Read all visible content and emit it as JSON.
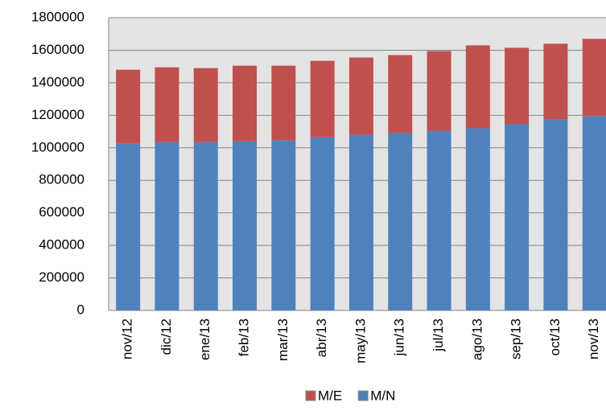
{
  "chart_data": {
    "type": "stacked_bar",
    "categories": [
      "nov/12",
      "dic/12",
      "ene/13",
      "feb/13",
      "mar/13",
      "abr/13",
      "may/13",
      "jun/13",
      "jul/13",
      "ago/13",
      "sep/13",
      "oct/13",
      "nov/13"
    ],
    "series": [
      {
        "name": "M/N",
        "color": "#4f81bd",
        "values": [
          1025000,
          1035000,
          1035000,
          1040000,
          1045000,
          1065000,
          1080000,
          1090000,
          1105000,
          1120000,
          1145000,
          1175000,
          1195000
        ]
      },
      {
        "name": "M/E",
        "color": "#c0504d",
        "values": [
          455000,
          460000,
          455000,
          465000,
          460000,
          470000,
          475000,
          480000,
          490000,
          510000,
          470000,
          465000,
          475000
        ]
      }
    ],
    "ylim": [
      0,
      1800000
    ],
    "yticks": [
      0,
      200000,
      400000,
      600000,
      800000,
      1000000,
      1200000,
      1400000,
      1600000,
      1800000
    ],
    "grid": true,
    "legend": "bottom"
  }
}
